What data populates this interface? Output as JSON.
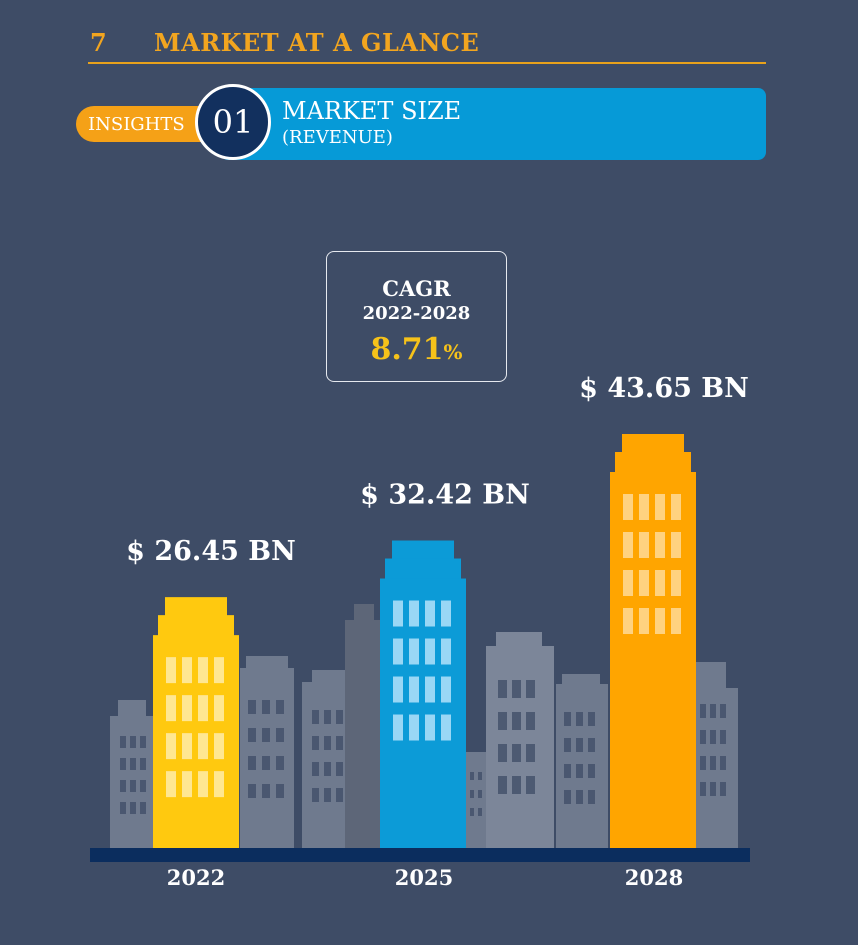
{
  "header": {
    "number": "7",
    "title": "MARKET AT A GLANCE"
  },
  "banner": {
    "tag": "INSIGHTS",
    "index": "01",
    "title": "MARKET SIZE",
    "subtitle": "(REVENUE)"
  },
  "cagr": {
    "label": "CAGR",
    "period": "2022-2028",
    "value": "8.71",
    "unit": "%"
  },
  "chart_data": {
    "type": "bar",
    "categories": [
      "2022",
      "2025",
      "2028"
    ],
    "values": [
      26.45,
      32.42,
      43.65
    ],
    "value_labels": [
      "$ 26.45 BN",
      "$ 32.42 BN",
      "$ 43.65 BN"
    ],
    "colors": [
      "#ffc90f",
      "#0c9bd7",
      "#ffa500"
    ],
    "ylim": [
      0,
      43.65
    ],
    "grid": false,
    "title": "",
    "xlabel": "",
    "ylabel": ""
  }
}
